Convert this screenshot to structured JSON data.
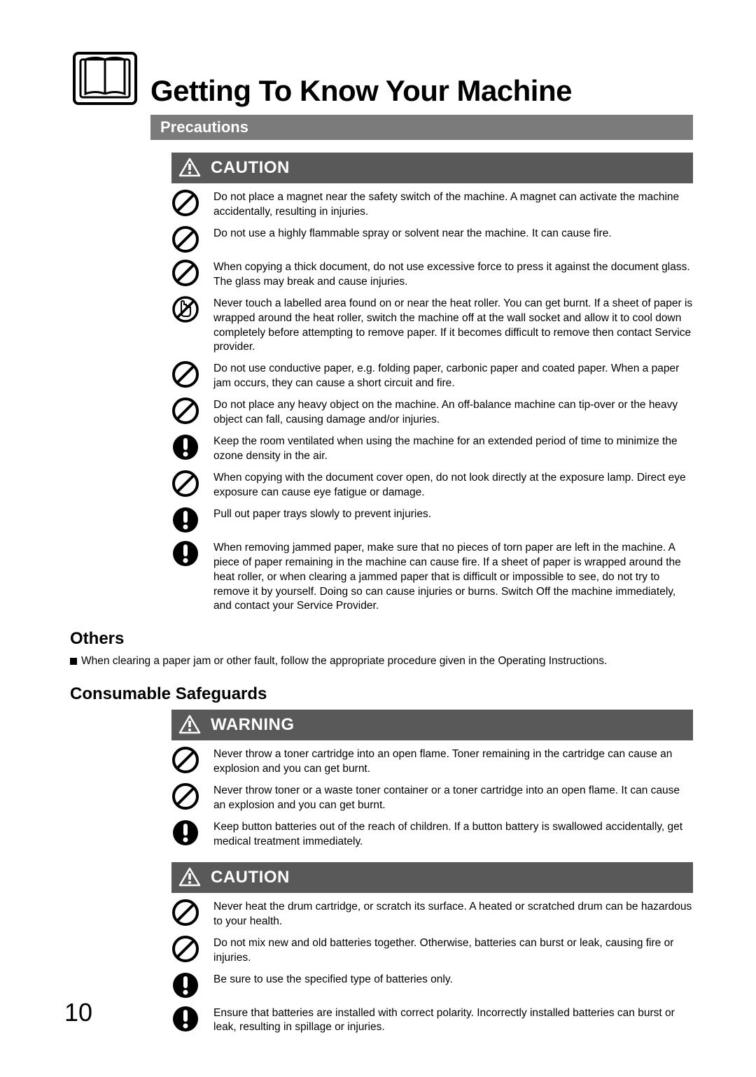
{
  "header": {
    "title": "Getting To Know Your Machine",
    "subtitle": "Precautions"
  },
  "caution1": {
    "label": "CAUTION",
    "items": [
      {
        "icon": "prohibit",
        "text": "Do not place a magnet near the safety switch of the machine. A magnet can activate the machine accidentally, resulting in injuries."
      },
      {
        "icon": "prohibit",
        "text": "Do not use a highly flammable spray or solvent near the machine. It can cause fire."
      },
      {
        "icon": "prohibit",
        "text": "When copying a thick document, do not use excessive force to press it against the document glass. The glass may break and cause injuries."
      },
      {
        "icon": "no-touch",
        "text": "Never touch a labelled area found on or near the heat roller. You can get burnt. If a sheet of paper is wrapped around the heat roller, switch the machine off at the wall socket and allow it to cool down completely before attempting to remove paper. If it becomes difficult to remove then contact Service provider."
      },
      {
        "icon": "prohibit",
        "text": "Do not use conductive paper, e.g. folding paper, carbonic paper and coated paper. When a paper jam occurs, they can cause a short circuit and fire."
      },
      {
        "icon": "prohibit",
        "text": "Do not place any heavy object on the machine. An off-balance machine can tip-over or the heavy object can fall, causing damage and/or injuries."
      },
      {
        "icon": "mandatory",
        "text": "Keep the room ventilated when using the machine for an extended period of time to minimize the ozone density in the air."
      },
      {
        "icon": "prohibit",
        "text": "When copying with the document cover open, do not look directly at the exposure lamp. Direct eye exposure can cause eye fatigue or damage."
      },
      {
        "icon": "mandatory",
        "text": "Pull out paper trays slowly to prevent injuries."
      },
      {
        "icon": "mandatory",
        "text": "When removing jammed paper, make sure that no pieces of torn paper are left in the machine. A piece of paper remaining in the machine can cause fire. If a sheet of paper is wrapped around the heat roller, or when clearing a jammed paper that is difficult or impossible to see, do not try to remove it by yourself. Doing so can cause injuries or burns. Switch Off the machine immediately, and contact your Service Provider."
      }
    ]
  },
  "others": {
    "title": "Others",
    "bullet": "When clearing a paper jam or other fault, follow the appropriate procedure given in the Operating Instructions."
  },
  "consumable": {
    "title": "Consumable Safeguards"
  },
  "warning": {
    "label": "WARNING",
    "items": [
      {
        "icon": "prohibit",
        "text": "Never throw a toner cartridge into an open flame. Toner remaining in the cartridge can cause an explosion and you can get burnt."
      },
      {
        "icon": "prohibit",
        "text": "Never throw toner or a waste toner container or a toner cartridge into an open flame. It can cause an explosion and you can get burnt."
      },
      {
        "icon": "mandatory",
        "text": "Keep button batteries out of the reach of children. If a button battery is swallowed accidentally, get medical treatment immediately."
      }
    ]
  },
  "caution2": {
    "label": "CAUTION",
    "items": [
      {
        "icon": "prohibit",
        "text": "Never heat the drum cartridge, or scratch its surface. A heated or scratched drum can be hazardous to your health."
      },
      {
        "icon": "prohibit",
        "text": "Do not mix new and old batteries together. Otherwise, batteries can burst or leak, causing fire or injuries."
      },
      {
        "icon": "mandatory",
        "text": "Be sure to use the specified type of batteries only."
      },
      {
        "icon": "mandatory",
        "text": "Ensure that batteries are installed with correct polarity. Incorrectly installed batteries can burst or leak, resulting in spillage or injuries."
      }
    ]
  },
  "page_number": "10"
}
